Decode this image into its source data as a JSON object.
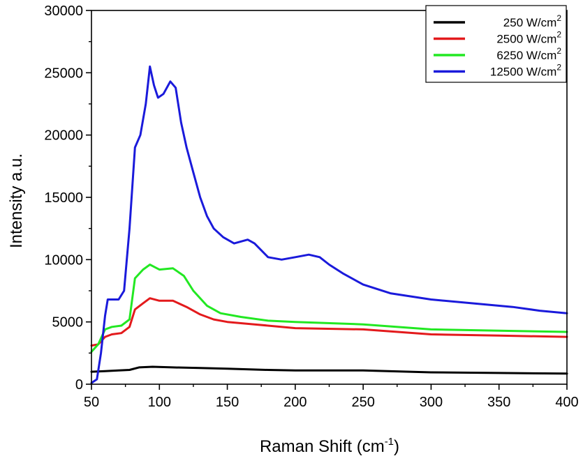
{
  "chart_data": {
    "type": "line",
    "title": "",
    "xlabel": "Raman Shift (cm",
    "xlabel_sup": "-1",
    "xlabel_suffix": ")",
    "ylabel": "Intensity a.u.",
    "xlim": [
      50,
      400
    ],
    "ylim": [
      0,
      30000
    ],
    "x_ticks": [
      50,
      100,
      150,
      200,
      250,
      300,
      350,
      400
    ],
    "y_ticks": [
      0,
      5000,
      10000,
      15000,
      20000,
      25000,
      30000
    ],
    "x_tick_labels": [
      "50",
      "100",
      "150",
      "200",
      "250",
      "300",
      "350",
      "400"
    ],
    "y_tick_labels": [
      "0",
      "5000",
      "10000",
      "15000",
      "20000",
      "25000",
      "30000"
    ],
    "grid": false,
    "legend_position": "top-right",
    "series": [
      {
        "name": "250 W/cm",
        "name_sup": "2",
        "color": "#000000",
        "points": [
          [
            50,
            1000
          ],
          [
            60,
            1050
          ],
          [
            70,
            1100
          ],
          [
            78,
            1150
          ],
          [
            85,
            1350
          ],
          [
            95,
            1400
          ],
          [
            110,
            1350
          ],
          [
            130,
            1300
          ],
          [
            150,
            1250
          ],
          [
            180,
            1150
          ],
          [
            200,
            1100
          ],
          [
            250,
            1100
          ],
          [
            300,
            950
          ],
          [
            350,
            900
          ],
          [
            400,
            850
          ]
        ]
      },
      {
        "name": "2500 W/cm",
        "name_sup": "2",
        "color": "#e31a1c",
        "points": [
          [
            50,
            3100
          ],
          [
            55,
            3200
          ],
          [
            60,
            3800
          ],
          [
            65,
            4000
          ],
          [
            72,
            4100
          ],
          [
            78,
            4600
          ],
          [
            82,
            6000
          ],
          [
            88,
            6500
          ],
          [
            93,
            6900
          ],
          [
            100,
            6700
          ],
          [
            110,
            6700
          ],
          [
            120,
            6200
          ],
          [
            130,
            5600
          ],
          [
            140,
            5200
          ],
          [
            150,
            5000
          ],
          [
            170,
            4800
          ],
          [
            200,
            4500
          ],
          [
            250,
            4400
          ],
          [
            300,
            4000
          ],
          [
            350,
            3900
          ],
          [
            400,
            3800
          ]
        ]
      },
      {
        "name": "6250 W/cm",
        "name_sup": "2",
        "color": "#22e822",
        "points": [
          [
            50,
            2600
          ],
          [
            55,
            3200
          ],
          [
            60,
            4400
          ],
          [
            65,
            4600
          ],
          [
            72,
            4700
          ],
          [
            78,
            5200
          ],
          [
            82,
            8500
          ],
          [
            88,
            9200
          ],
          [
            93,
            9600
          ],
          [
            100,
            9200
          ],
          [
            110,
            9300
          ],
          [
            118,
            8700
          ],
          [
            125,
            7500
          ],
          [
            135,
            6300
          ],
          [
            145,
            5700
          ],
          [
            160,
            5400
          ],
          [
            180,
            5100
          ],
          [
            200,
            5000
          ],
          [
            250,
            4800
          ],
          [
            300,
            4400
          ],
          [
            350,
            4300
          ],
          [
            400,
            4200
          ]
        ]
      },
      {
        "name": "12500 W/cm",
        "name_sup": "2",
        "color": "#1a1adb",
        "points": [
          [
            50,
            100
          ],
          [
            54,
            400
          ],
          [
            57,
            2500
          ],
          [
            60,
            5500
          ],
          [
            62,
            6800
          ],
          [
            66,
            6800
          ],
          [
            70,
            6800
          ],
          [
            74,
            7500
          ],
          [
            78,
            12500
          ],
          [
            82,
            19000
          ],
          [
            86,
            20000
          ],
          [
            90,
            22500
          ],
          [
            93,
            25500
          ],
          [
            96,
            24000
          ],
          [
            99,
            23000
          ],
          [
            103,
            23300
          ],
          [
            108,
            24300
          ],
          [
            112,
            23800
          ],
          [
            116,
            21000
          ],
          [
            120,
            19000
          ],
          [
            125,
            17000
          ],
          [
            130,
            15000
          ],
          [
            135,
            13500
          ],
          [
            140,
            12500
          ],
          [
            147,
            11800
          ],
          [
            155,
            11300
          ],
          [
            165,
            11600
          ],
          [
            170,
            11300
          ],
          [
            180,
            10200
          ],
          [
            190,
            10000
          ],
          [
            200,
            10200
          ],
          [
            210,
            10400
          ],
          [
            218,
            10200
          ],
          [
            225,
            9600
          ],
          [
            235,
            8900
          ],
          [
            250,
            8000
          ],
          [
            270,
            7300
          ],
          [
            300,
            6800
          ],
          [
            330,
            6500
          ],
          [
            360,
            6200
          ],
          [
            380,
            5900
          ],
          [
            400,
            5700
          ]
        ]
      }
    ]
  }
}
